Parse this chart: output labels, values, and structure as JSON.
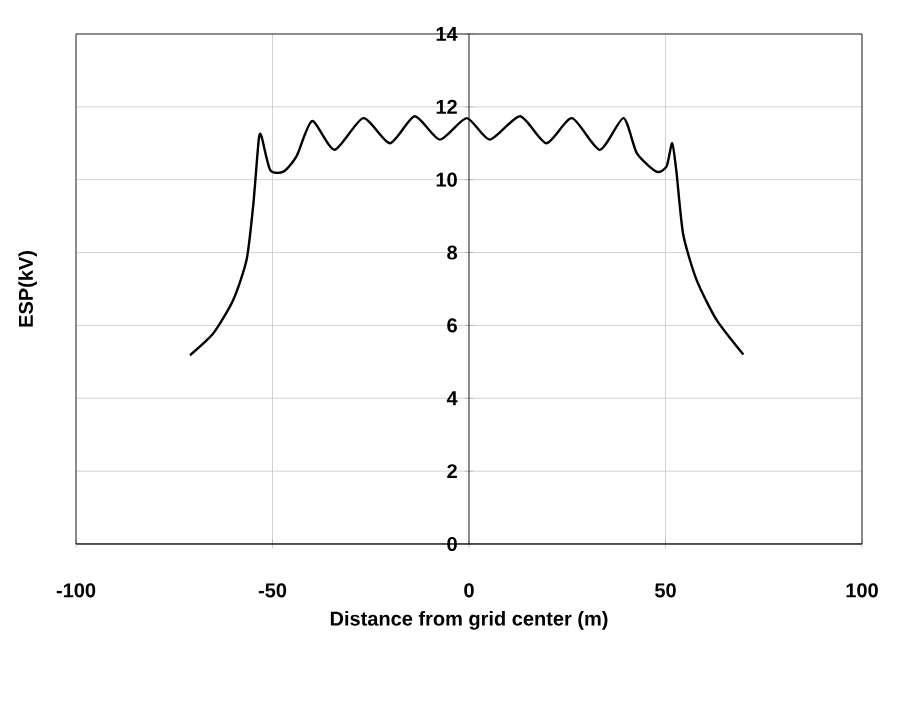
{
  "chart_data": {
    "type": "line",
    "xlabel": "Distance from grid center (m)",
    "ylabel": "ESP(kV)",
    "xlim": [
      -100,
      100
    ],
    "xticks": [
      -100,
      -50,
      0,
      50,
      100
    ],
    "ylim": [
      0,
      14
    ],
    "yticks": [
      0,
      2,
      4,
      6,
      8,
      10,
      12,
      14
    ],
    "grid": true,
    "series": [
      {
        "color": "#000000",
        "x": [
          -71,
          -65,
          -60,
          -56.6,
          -54.9,
          -53.5,
          -52.8,
          -50.6,
          -47.2,
          -43.9,
          -39.9,
          -34.2,
          -26.9,
          -20.1,
          -13.8,
          -7.4,
          -0.6,
          5.3,
          13,
          19.7,
          26.2,
          33.3,
          39.3,
          42.7,
          47.7,
          50.3,
          51.7,
          52.8,
          54.5,
          57.9,
          63,
          69.8
        ],
        "values": [
          5.18,
          5.79,
          6.7,
          7.8,
          9.3,
          11.1,
          11.19,
          10.27,
          10.22,
          10.64,
          11.61,
          10.82,
          11.69,
          11.0,
          11.74,
          11.1,
          11.69,
          11.1,
          11.74,
          11.0,
          11.69,
          10.82,
          11.69,
          10.73,
          10.22,
          10.37,
          11.0,
          10.2,
          8.5,
          7.25,
          6.15,
          5.2
        ]
      }
    ]
  }
}
